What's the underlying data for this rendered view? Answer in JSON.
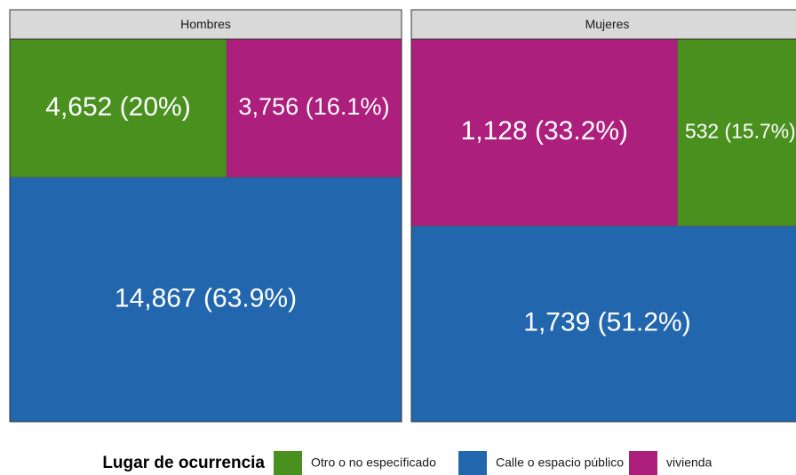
{
  "chart_data": {
    "type": "treemap",
    "legend_title": "Lugar de ocurrencia",
    "series": [
      {
        "name": "Otro o no específicado",
        "color": "#4a901f"
      },
      {
        "name": "Calle o espacio público",
        "color": "#2266ad"
      },
      {
        "name": "vivienda",
        "color": "#ac1f7c"
      }
    ],
    "panels": [
      {
        "title": "Hombres",
        "values": [
          4652,
          14867,
          3756
        ],
        "value_labels": [
          "4,652 (20%)",
          "14,867 (63.9%)",
          "3,756 (16.1%)"
        ]
      },
      {
        "title": "Mujeres",
        "values": [
          532,
          1739,
          1128
        ],
        "value_labels": [
          "532 (15.7%)",
          "1,739 (51.2%)",
          "1,128 (33.2%)"
        ]
      }
    ]
  }
}
